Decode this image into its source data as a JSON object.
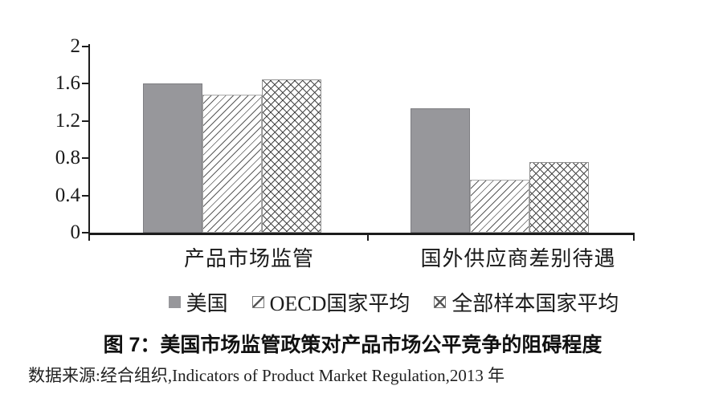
{
  "figure": {
    "title": "图 7：美国市场监管政策对产品市场公平竞争的阻碍程度",
    "source": "数据来源:经合组织,Indicators of Product Market Regulation,2013 年"
  },
  "chart_data": {
    "type": "bar",
    "title": "图 7：美国市场监管政策对产品市场公平竞争的阻碍程度",
    "categories": [
      "产品市场监管",
      "国外供应商差别待遇"
    ],
    "series": [
      {
        "name": "美国",
        "pattern": "solid",
        "color": "#97979b",
        "values": [
          1.6,
          1.34
        ]
      },
      {
        "name": "OECD国家平均",
        "pattern": "diagonal-hatch",
        "values": [
          1.48,
          0.57
        ]
      },
      {
        "name": "全部样本国家平均",
        "pattern": "crosshatch",
        "values": [
          1.65,
          0.76
        ]
      }
    ],
    "xlabel": "",
    "ylabel": "",
    "ylim": [
      0,
      2
    ],
    "yticks": [
      2,
      1.6,
      1.2,
      0.8,
      0.4,
      0
    ],
    "grid": false,
    "legend_position": "bottom",
    "axis_color": "#1c1c1c"
  }
}
